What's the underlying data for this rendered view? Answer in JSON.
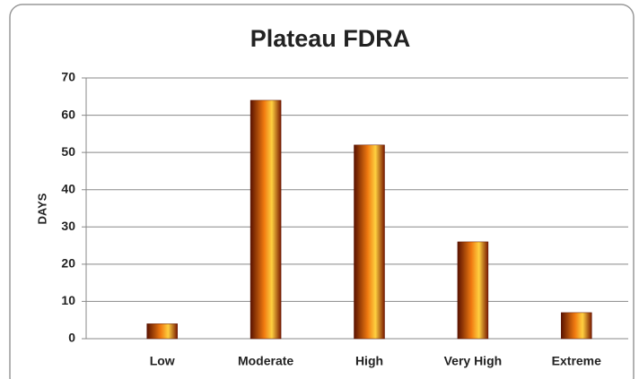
{
  "chart_data": {
    "type": "bar",
    "title": "Plateau FDRA",
    "y_label": "DAYS",
    "categories": [
      "Low",
      "Moderate",
      "High",
      "Very High",
      "Extreme"
    ],
    "values": [
      4,
      64,
      52,
      26,
      7
    ],
    "color": "#f07a10",
    "ylim": [
      0,
      70
    ],
    "yticks": [
      0,
      10,
      20,
      30,
      40,
      50,
      60,
      70
    ],
    "grid": true
  }
}
